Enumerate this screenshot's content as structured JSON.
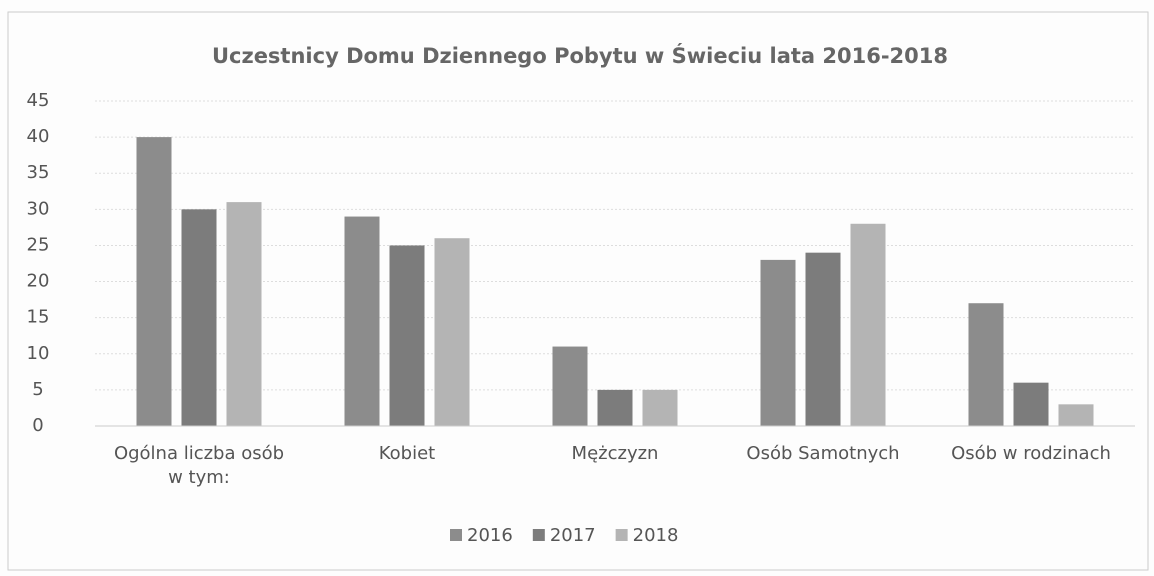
{
  "chart_data": {
    "type": "bar",
    "title": "Uczestnicy Domu Dziennego Pobytu w Świeciu lata 2016-2018",
    "categories": [
      "Ogólna liczba osób w tym:",
      "Kobiet",
      "Mężczyzn",
      "Osób Samotnych",
      "Osób w rodzinach"
    ],
    "series": [
      {
        "name": "2016",
        "color": "#8c8c8c",
        "values": [
          40,
          29,
          11,
          23,
          17
        ]
      },
      {
        "name": "2017",
        "color": "#7c7c7c",
        "values": [
          30,
          25,
          5,
          24,
          6
        ]
      },
      {
        "name": "2018",
        "color": "#b4b4b4",
        "values": [
          31,
          26,
          5,
          28,
          3
        ]
      }
    ],
    "ylim": [
      0,
      45
    ],
    "yticks": [
      0,
      5,
      10,
      15,
      20,
      25,
      30,
      35,
      40,
      45
    ],
    "grid": true,
    "legend": "bottom"
  }
}
